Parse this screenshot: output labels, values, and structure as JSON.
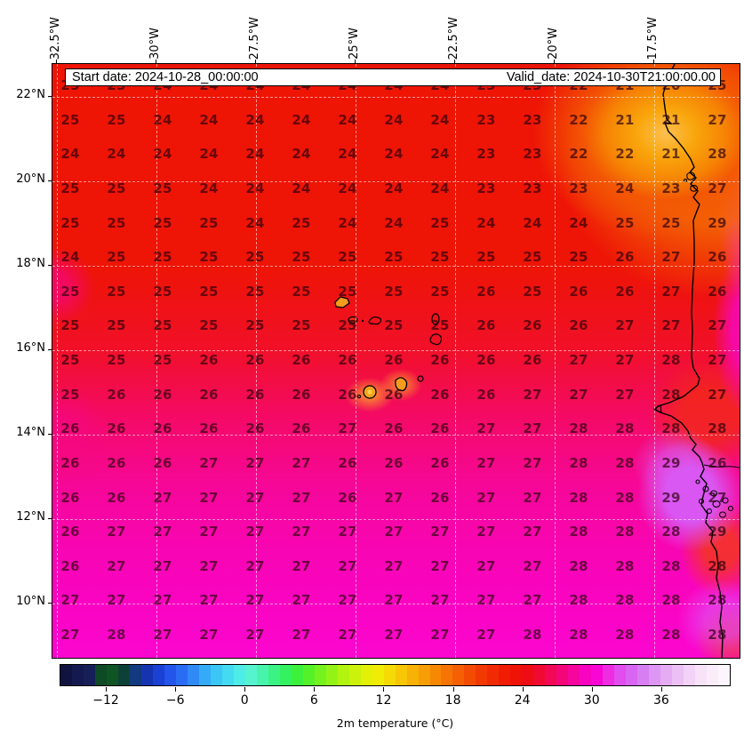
{
  "banner": {
    "start": "Start date: 2024-10-28_00:00:00",
    "valid": "Valid_date: 2024-10-30T21:00:00.00"
  },
  "axes": {
    "lon_labels": [
      "32.5°W",
      "30°W",
      "27.5°W",
      "25°W",
      "22.5°W",
      "20°W",
      "17.5°W"
    ],
    "lat_labels": [
      "22°N",
      "20°N",
      "18°N",
      "16°N",
      "14°N",
      "12°N",
      "10°N"
    ]
  },
  "colorbar": {
    "label": "2m temperature (°C)",
    "tick_labels": [
      "−12",
      "−6",
      "0",
      "6",
      "12",
      "18",
      "24",
      "30",
      "36"
    ],
    "tick_values": [
      -12,
      -6,
      0,
      6,
      12,
      18,
      24,
      30,
      36
    ],
    "range": [
      -16,
      42
    ],
    "cells": [
      "#101340",
      "#141a50",
      "#161f58",
      "#0e4a26",
      "#0f5524",
      "#0d4138",
      "#123a7e",
      "#1535b0",
      "#1a40d4",
      "#2355ea",
      "#2a6cf4",
      "#2f8af6",
      "#35aaf7",
      "#3cc6f6",
      "#44daf2",
      "#4eece6",
      "#55f4cf",
      "#48f4ac",
      "#3bf385",
      "#34f160",
      "#3cf13c",
      "#55f128",
      "#74f21e",
      "#94f316",
      "#b2f310",
      "#ccf20c",
      "#e2f107",
      "#f0ec06",
      "#f5da05",
      "#f7c605",
      "#f8b105",
      "#f79d05",
      "#f68804",
      "#f57403",
      "#f46003",
      "#f34c02",
      "#f23902",
      "#f12a03",
      "#f01c04",
      "#ef1206",
      "#ee0d15",
      "#f00a31",
      "#f20854",
      "#f40679",
      "#f6059f",
      "#f804c0",
      "#f906d4",
      "#ee2ce1",
      "#e14dee",
      "#d966f2",
      "#d87ef3",
      "#dd96f3",
      "#e5acf3",
      "#ecc0f4",
      "#f2d2f6",
      "#f7e2f8",
      "#fbecfa",
      "#fdf5fd"
    ]
  },
  "colors": {
    "field_red": "#ee1505",
    "field_crimson": "#f30a60",
    "field_magenta": "#fa04c4",
    "coastal_orange": "#f9a60c",
    "violet_patch": "#d85af6",
    "value_text": "rgba(42,0,10,0.68)",
    "gridline": "rgba(255,255,255,0.55)",
    "coastline": "#000000"
  },
  "chart_data": {
    "type": "heatmap",
    "title": "2m temperature",
    "units": "°C",
    "x_tick_labels_lon": [
      "32.5°W",
      "30°W",
      "27.5°W",
      "25°W",
      "22.5°W",
      "20°W",
      "17.5°W"
    ],
    "y_tick_labels_lat": [
      "22°N",
      "20°N",
      "18°N",
      "16°N",
      "14°N",
      "12°N",
      "10°N"
    ],
    "colorbar_ticks": [
      -12,
      -6,
      0,
      6,
      12,
      18,
      24,
      30,
      36
    ],
    "colorbar_range": [
      -16,
      42
    ],
    "grid_values_c": [
      [
        25,
        25,
        24,
        24,
        24,
        24,
        24,
        24,
        24,
        23,
        23,
        22,
        21,
        20,
        25
      ],
      [
        25,
        25,
        24,
        24,
        24,
        24,
        24,
        24,
        24,
        23,
        23,
        22,
        21,
        21,
        27
      ],
      [
        24,
        24,
        24,
        24,
        24,
        24,
        24,
        24,
        24,
        23,
        23,
        22,
        22,
        21,
        28
      ],
      [
        25,
        25,
        25,
        24,
        24,
        24,
        24,
        24,
        24,
        23,
        23,
        23,
        24,
        23,
        27
      ],
      [
        25,
        25,
        25,
        25,
        24,
        25,
        24,
        24,
        25,
        24,
        24,
        24,
        25,
        25,
        29
      ],
      [
        24,
        25,
        25,
        25,
        25,
        25,
        25,
        25,
        25,
        25,
        25,
        25,
        26,
        27,
        26
      ],
      [
        25,
        25,
        25,
        25,
        25,
        25,
        25,
        25,
        25,
        26,
        25,
        26,
        26,
        27,
        26
      ],
      [
        25,
        25,
        25,
        25,
        25,
        25,
        25,
        25,
        25,
        26,
        26,
        26,
        27,
        27,
        27
      ],
      [
        25,
        25,
        25,
        26,
        26,
        26,
        26,
        26,
        26,
        26,
        26,
        27,
        27,
        28,
        27
      ],
      [
        25,
        26,
        26,
        26,
        26,
        26,
        26,
        26,
        26,
        26,
        27,
        27,
        27,
        28,
        27
      ],
      [
        26,
        26,
        26,
        26,
        26,
        26,
        27,
        26,
        26,
        27,
        27,
        28,
        28,
        28,
        28
      ],
      [
        26,
        26,
        26,
        27,
        27,
        27,
        26,
        26,
        26,
        27,
        27,
        28,
        28,
        29,
        26
      ],
      [
        26,
        26,
        27,
        27,
        27,
        27,
        26,
        27,
        26,
        27,
        27,
        28,
        28,
        29,
        27
      ],
      [
        26,
        27,
        27,
        27,
        27,
        27,
        27,
        27,
        27,
        27,
        27,
        28,
        28,
        28,
        29
      ],
      [
        26,
        27,
        27,
        27,
        27,
        27,
        27,
        27,
        27,
        27,
        27,
        28,
        28,
        28,
        28
      ],
      [
        27,
        27,
        27,
        27,
        27,
        27,
        27,
        27,
        27,
        27,
        27,
        28,
        28,
        28,
        28
      ],
      [
        27,
        28,
        27,
        27,
        27,
        27,
        27,
        27,
        27,
        27,
        28,
        28,
        28,
        28,
        28
      ]
    ]
  }
}
